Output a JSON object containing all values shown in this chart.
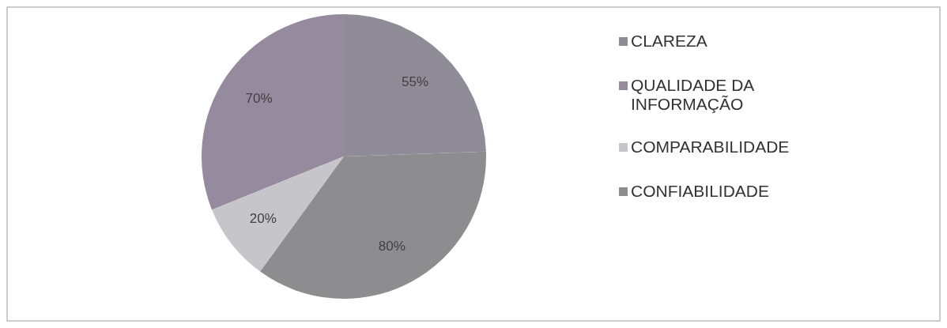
{
  "chart_data": {
    "type": "pie",
    "categories": [
      "CLAREZA",
      "QUALIDADE DA INFORMAÇÃO",
      "COMPARABILIDADE",
      "CONFIABILIDADE"
    ],
    "values": [
      55,
      70,
      20,
      80
    ],
    "colors": [
      "#8f8c98",
      "#968a9e",
      "#c6c5ca",
      "#8d8d90"
    ],
    "value_labels": [
      "55%",
      "70%",
      "20%",
      "80%"
    ],
    "legend": "right"
  }
}
